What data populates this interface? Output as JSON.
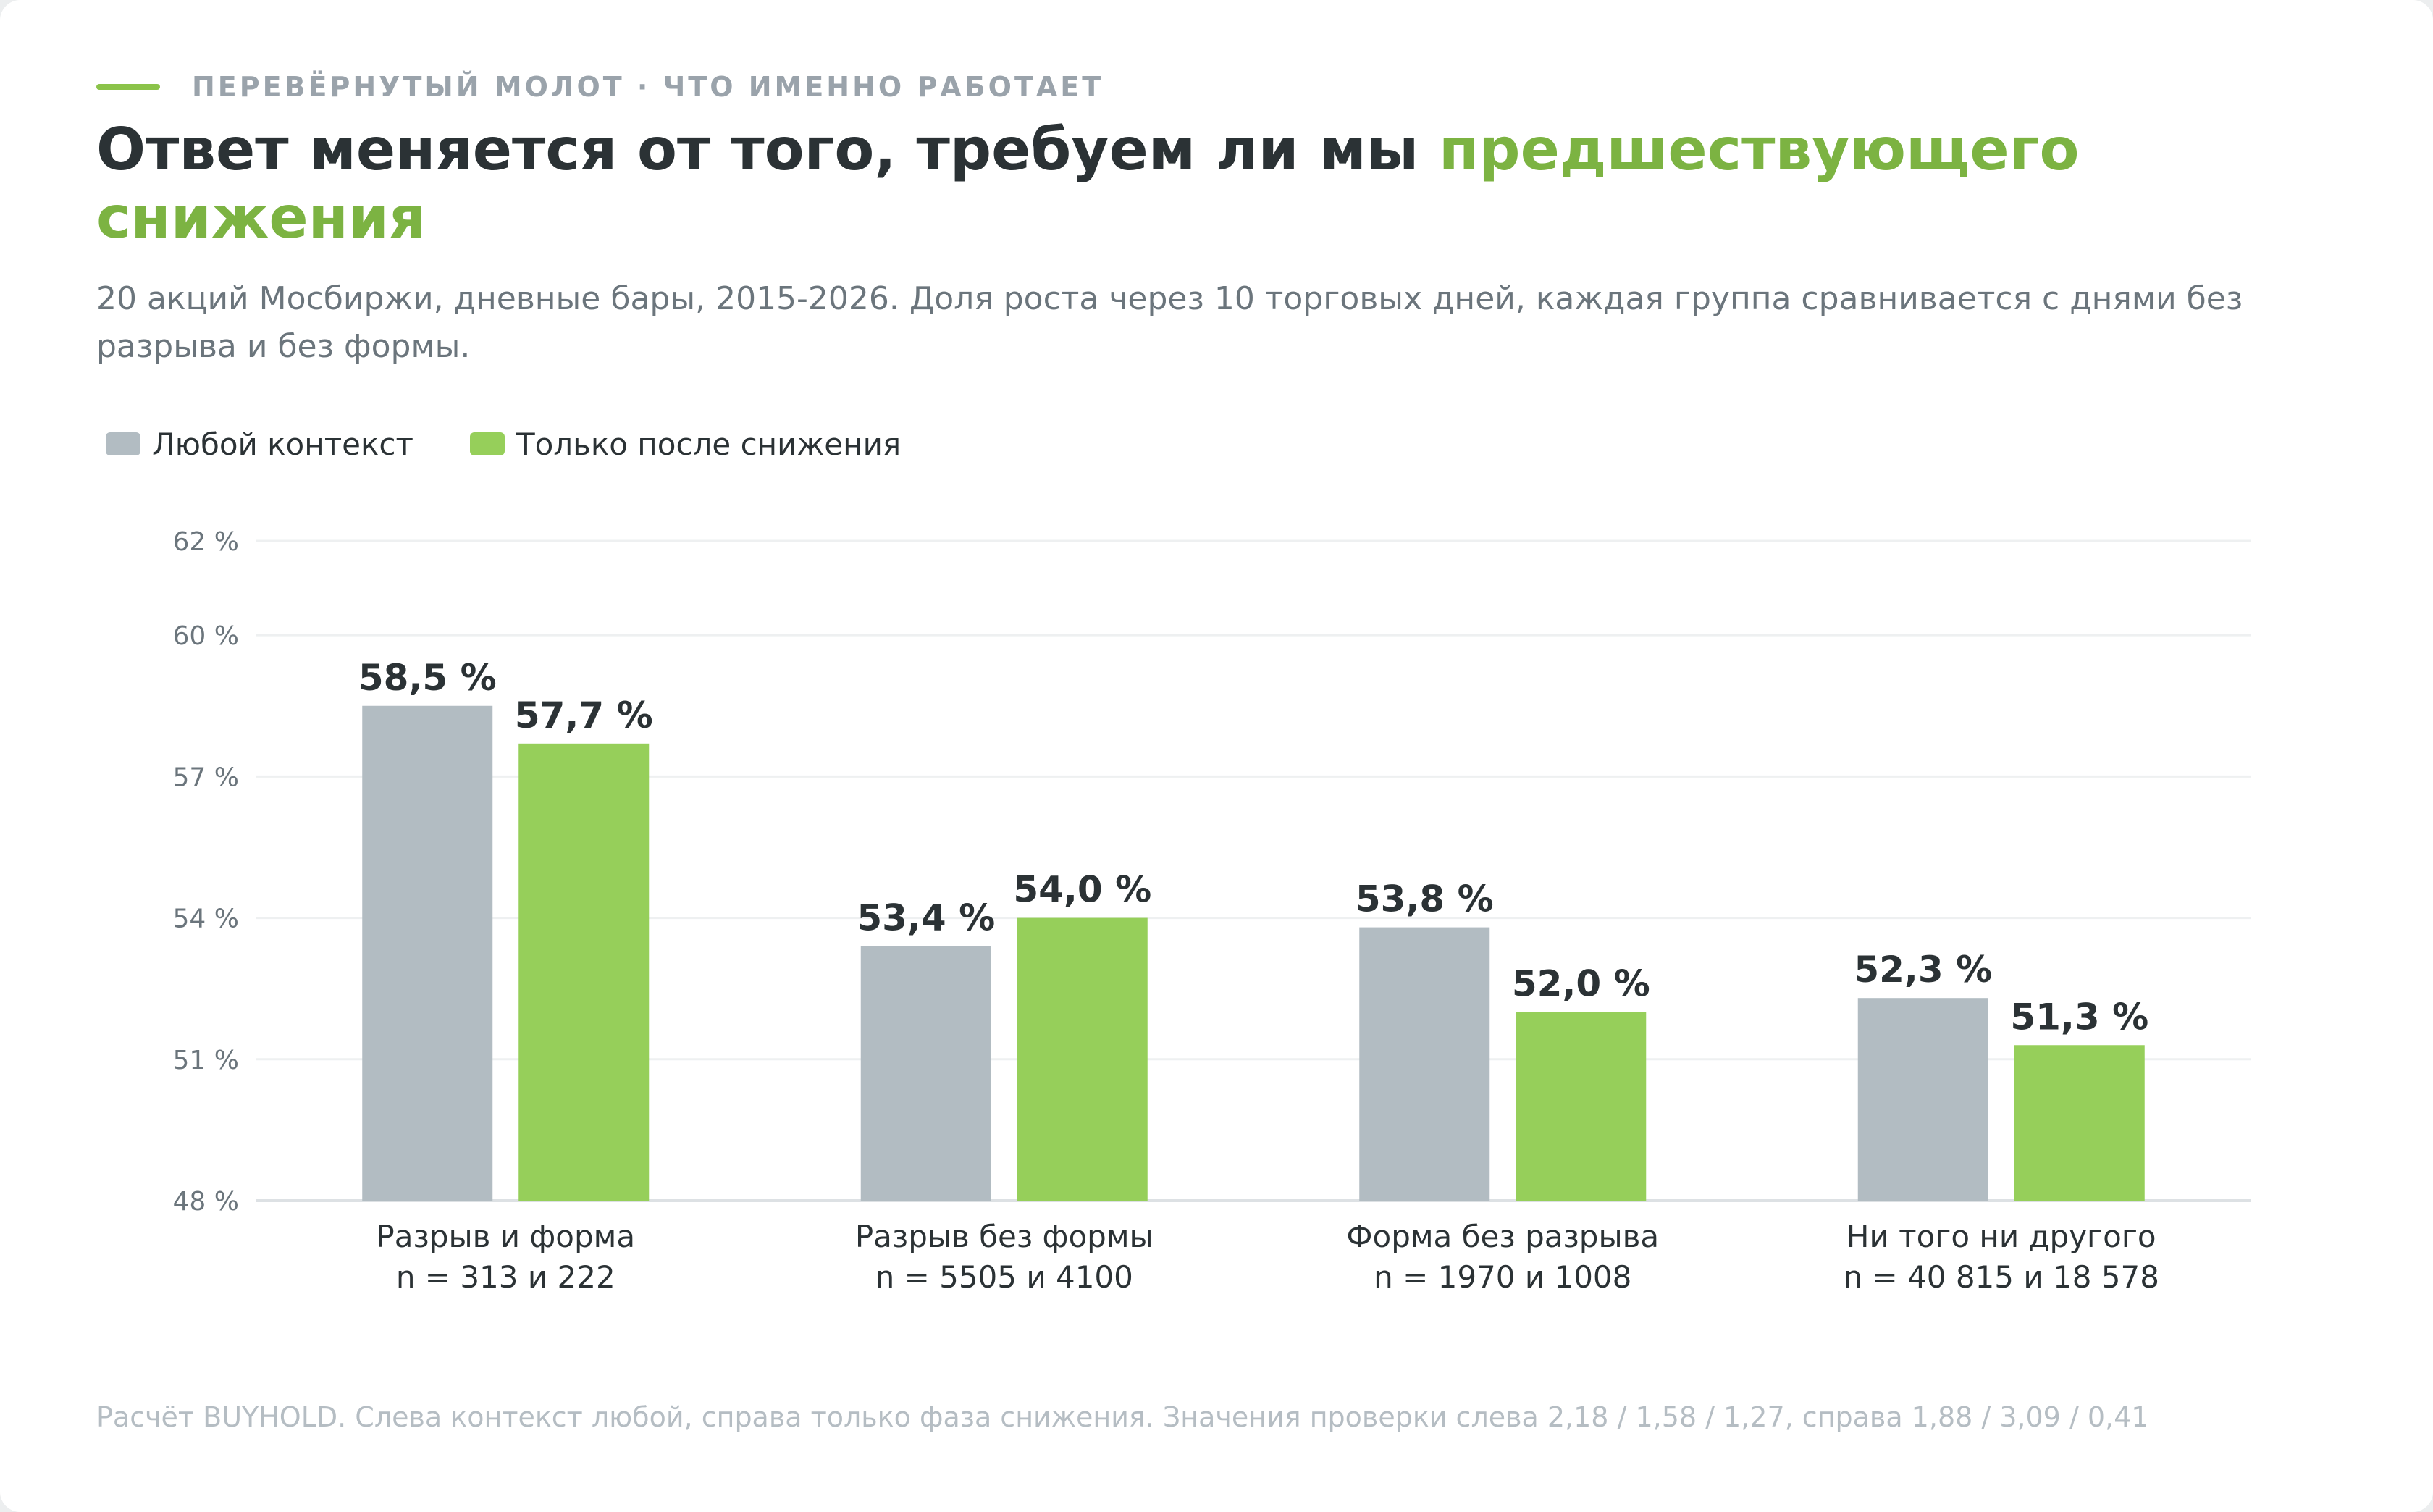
{
  "header": {
    "eyebrow": "ПЕРЕВЁРНУТЫЙ МОЛОТ · ЧТО ИМЕННО РАБОТАЕТ",
    "title_main": "Ответ меняется от того, требуем ли мы ",
    "title_accent": "предшествующего снижения",
    "subtitle": "20 акций Мосбиржи, дневные бары, 2015-2026. Доля роста через 10 торговых дней, каждая группа сравнивается с днями без разрыва и без формы."
  },
  "footnote": "Расчёт BUYHOLD. Слева контекст любой, справа только фаза снижения. Значения проверки слева 2,18 / 1,58 / 1,27, справа 1,88 / 3,09 / 0,41",
  "colors": {
    "series_any": "#b2bcc2",
    "series_decline": "#96cf5a",
    "accent": "#7cb342",
    "gridline": "#eef0f1",
    "axis": "#dde1e4"
  },
  "chart_data": {
    "type": "bar",
    "categories": [
      "Разрыв и форма",
      "Разрыв без формы",
      "Форма без разрыва",
      "Ни того ни другого"
    ],
    "category_notes": [
      "n = 313 и 222",
      "n = 5505 и 4100",
      "n = 1970 и 1008",
      "n = 40 815 и 18 578"
    ],
    "series": [
      {
        "name": "Любой контекст",
        "values": [
          58.5,
          53.4,
          53.8,
          52.3
        ],
        "labels": [
          "58,5 %",
          "53,4 %",
          "53,8 %",
          "52,3 %"
        ]
      },
      {
        "name": "Только после снижения",
        "values": [
          57.7,
          54.0,
          52.0,
          51.3
        ],
        "labels": [
          "57,7 %",
          "54,0 %",
          "52,0 %",
          "51,3 %"
        ]
      }
    ],
    "ylim": [
      48,
      62
    ],
    "yticks": [
      48,
      51,
      54,
      57,
      60,
      62
    ],
    "ytick_labels": [
      "48 %",
      "51 %",
      "54 %",
      "57 %",
      "60 %",
      "62 %"
    ],
    "grid": true,
    "legend_position": "top-left"
  }
}
